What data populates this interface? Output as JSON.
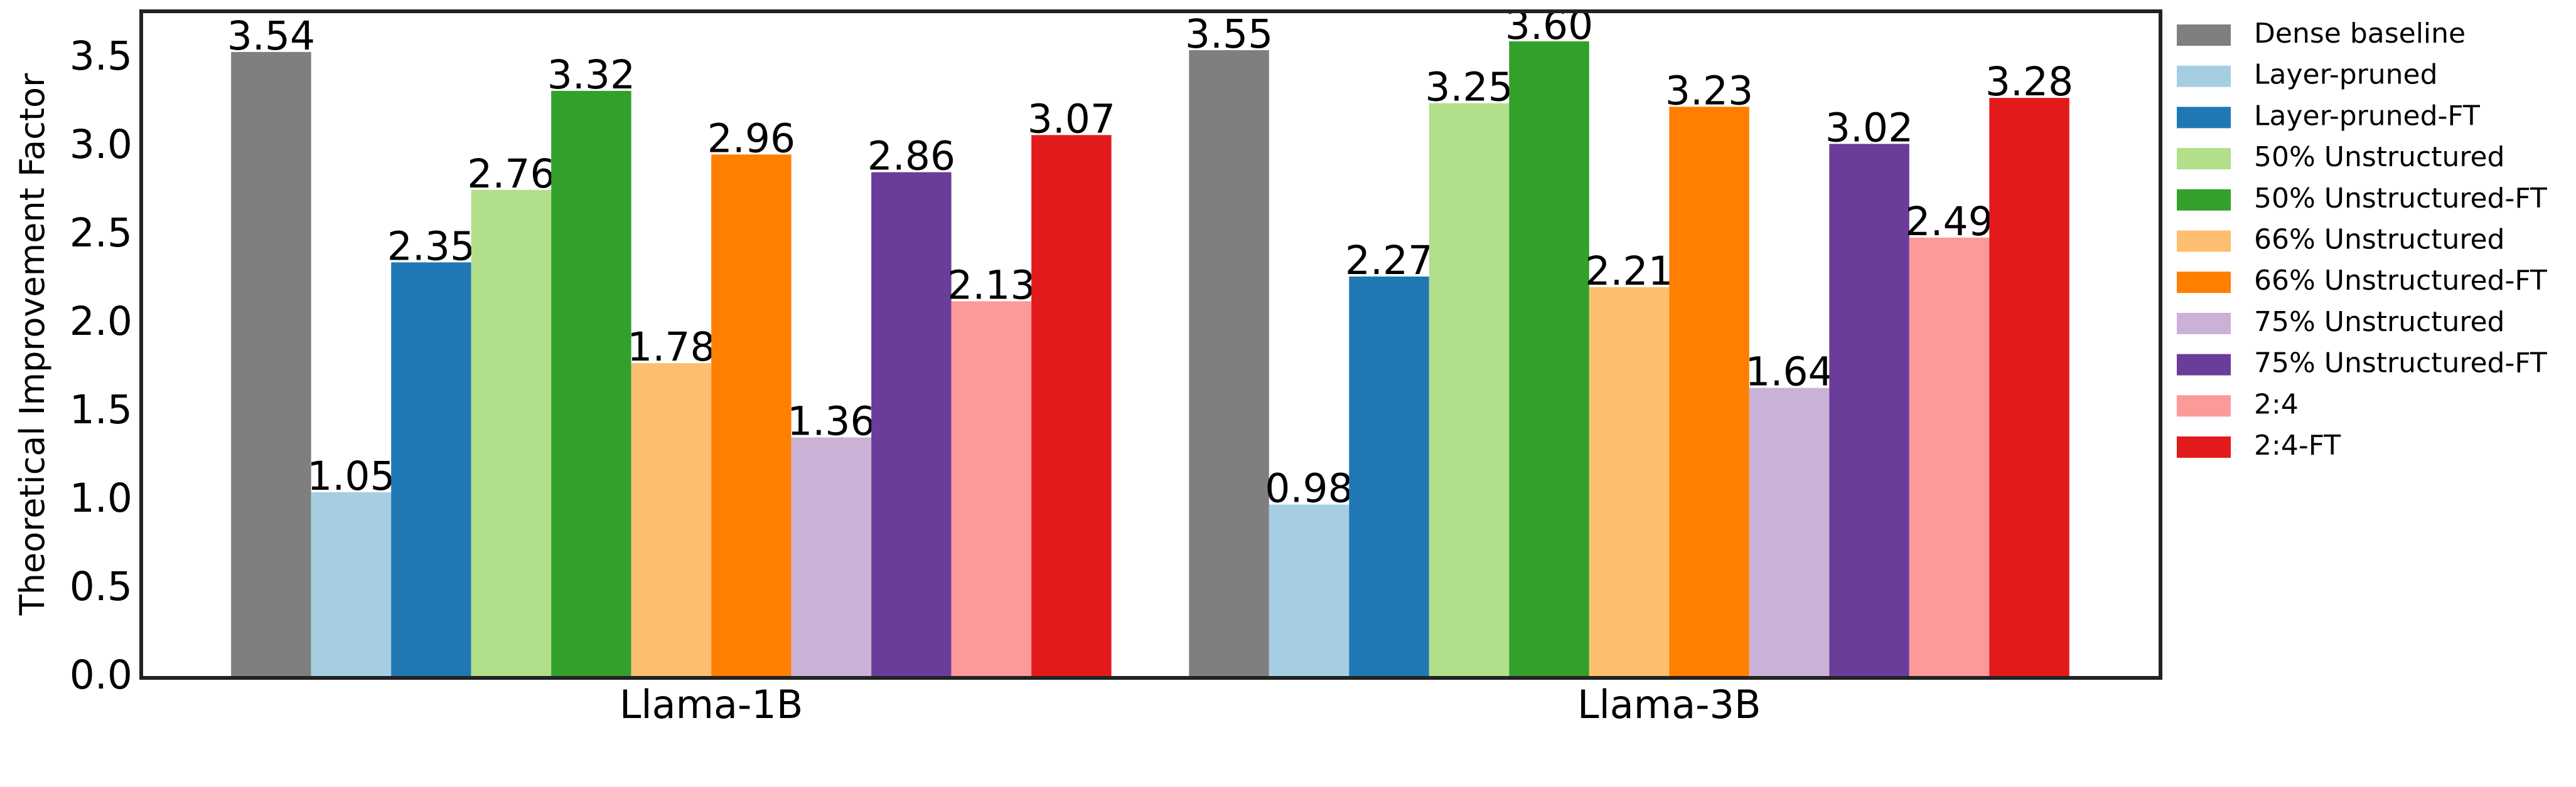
{
  "chart_data": {
    "type": "bar",
    "ylabel": "Theoretical Improvement Factor",
    "categories": [
      "Llama-1B",
      "Llama-3B"
    ],
    "ylim": [
      0,
      3.77
    ],
    "yticks": [
      {
        "value": 0,
        "label": "0.0"
      },
      0.5,
      {
        "value": 1,
        "label": "1.0"
      },
      1.5,
      {
        "value": 2,
        "label": "2.0"
      },
      2.5,
      {
        "value": 3,
        "label": "3.0"
      },
      3.5
    ],
    "legend": "outside-right",
    "series": [
      {
        "name": "Dense baseline",
        "color": "#7f7f7f",
        "values": [
          3.54,
          3.55
        ],
        "value_labels": [
          "3.54",
          "3.55"
        ]
      },
      {
        "name": "Layer-pruned",
        "color": "#a6cee3",
        "values": [
          1.05,
          0.98
        ],
        "value_labels": [
          "1.05",
          "0.98"
        ]
      },
      {
        "name": "Layer-pruned-FT",
        "color": "#1f78b4",
        "values": [
          2.35,
          2.27
        ],
        "value_labels": [
          "2.35",
          "2.27"
        ]
      },
      {
        "name": "50% Unstructured",
        "color": "#b2df8a",
        "values": [
          2.76,
          3.25
        ],
        "value_labels": [
          "2.76",
          "3.25"
        ]
      },
      {
        "name": "50% Unstructured-FT",
        "color": "#33a02c",
        "values": [
          3.32,
          3.6
        ],
        "value_labels": [
          "3.32",
          "3.60"
        ]
      },
      {
        "name": "66% Unstructured",
        "color": "#fdbf6f",
        "values": [
          1.78,
          2.21
        ],
        "value_labels": [
          "1.78",
          "2.21"
        ]
      },
      {
        "name": "66% Unstructured-FT",
        "color": "#ff7f00",
        "values": [
          2.96,
          3.23
        ],
        "value_labels": [
          "2.96",
          "3.23"
        ]
      },
      {
        "name": "75% Unstructured",
        "color": "#cab2d6",
        "values": [
          1.36,
          1.64
        ],
        "value_labels": [
          "1.36",
          "1.64"
        ]
      },
      {
        "name": "75% Unstructured-FT",
        "color": "#6a3d9a",
        "values": [
          2.86,
          3.02
        ],
        "value_labels": [
          "2.86",
          "3.02"
        ]
      },
      {
        "name": "2:4",
        "color": "#fb9a99",
        "values": [
          2.13,
          2.49
        ],
        "value_labels": [
          "2.13",
          "2.49"
        ]
      },
      {
        "name": "2:4-FT",
        "color": "#e31a1c",
        "values": [
          3.07,
          3.28
        ],
        "value_labels": [
          "3.07",
          "3.28"
        ]
      }
    ]
  }
}
